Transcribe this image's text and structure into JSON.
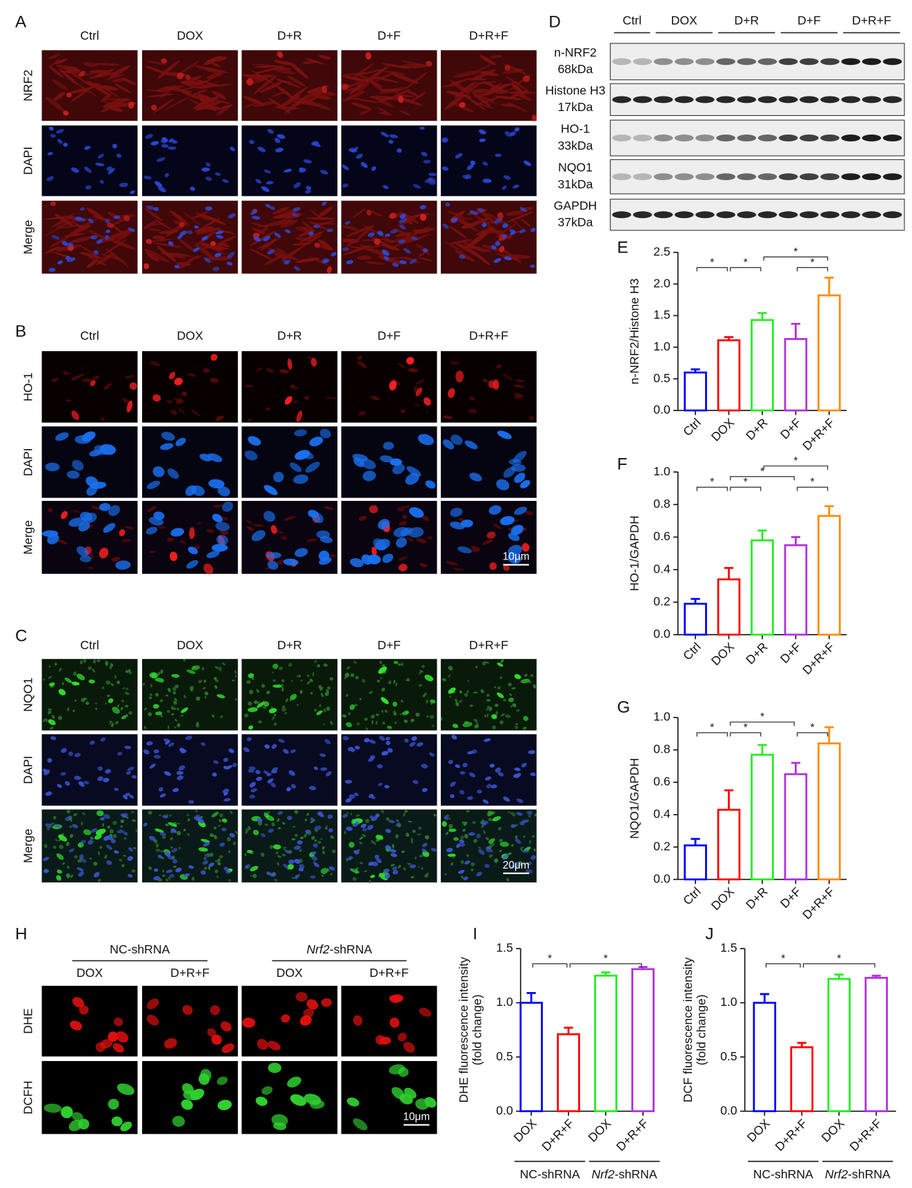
{
  "figure": {
    "A": {
      "letter": "A",
      "columns": [
        "Ctrl",
        "DOX",
        "D+R",
        "D+F",
        "D+R+F"
      ],
      "rows": [
        "NRF2",
        "DAPI",
        "Merge"
      ]
    },
    "B": {
      "letter": "B",
      "columns": [
        "Ctrl",
        "DOX",
        "D+R",
        "D+F",
        "D+R+F"
      ],
      "rows": [
        "HO-1",
        "DAPI",
        "Merge"
      ],
      "scale": "10μm"
    },
    "C": {
      "letter": "C",
      "columns": [
        "Ctrl",
        "DOX",
        "D+R",
        "D+F",
        "D+R+F"
      ],
      "rows": [
        "NQO1",
        "DAPI",
        "Merge"
      ],
      "scale": "20μm"
    },
    "D": {
      "letter": "D",
      "groups": [
        "Ctrl",
        "DOX",
        "D+R",
        "D+F",
        "D+R+F"
      ],
      "blots": [
        {
          "name": "n-NRF2",
          "size": "68kDa"
        },
        {
          "name": "Histone H3",
          "size": "17kDa"
        },
        {
          "name": "HO-1",
          "size": "33kDa"
        },
        {
          "name": "NQO1",
          "size": "31kDa"
        },
        {
          "name": "GAPDH",
          "size": "37kDa"
        }
      ]
    },
    "H": {
      "letter": "H",
      "groups": [
        {
          "name": "NC-shRNA",
          "columns": [
            "DOX",
            "D+R+F"
          ]
        },
        {
          "name_italic": "Nrf2",
          "name": "-shRNA",
          "columns": [
            "DOX",
            "D+R+F"
          ]
        }
      ],
      "rows": [
        "DHE",
        "DCFH"
      ],
      "scale": "10μm"
    }
  },
  "chart_data": [
    {
      "type": "bar",
      "letter": "E",
      "ylabel": [
        "n-NRF2/Histone H3"
      ],
      "categories": [
        "Ctrl",
        "DOX",
        "D+R",
        "D+F",
        "D+R+F"
      ],
      "colors": [
        "#0000ff",
        "#ff0000",
        "#22ee22",
        "#b030e0",
        "#ff8c00"
      ],
      "values": [
        0.6,
        1.11,
        1.43,
        1.13,
        1.82
      ],
      "errors": [
        0.05,
        0.05,
        0.11,
        0.24,
        0.28
      ],
      "ylim": [
        0,
        2.5
      ],
      "yticks": [
        {
          "value": 0,
          "label": "0.0"
        },
        0.5,
        {
          "value": 1,
          "label": "1.0"
        },
        1.5,
        {
          "value": 2,
          "label": "2.0"
        },
        2.5
      ],
      "brackets": [
        {
          "pair": [
            0,
            1
          ],
          "label": "*"
        },
        {
          "pair": [
            1,
            2
          ],
          "label": "*"
        },
        {
          "pair": [
            3,
            4
          ],
          "label": "*"
        },
        {
          "pair": [
            2,
            4
          ],
          "label": "*"
        }
      ]
    },
    {
      "type": "bar",
      "letter": "F",
      "ylabel": [
        "HO-1/GAPDH"
      ],
      "categories": [
        "Ctrl",
        "DOX",
        "D+R",
        "D+F",
        "D+R+F"
      ],
      "colors": [
        "#0000ff",
        "#ff0000",
        "#22ee22",
        "#b030e0",
        "#ff8c00"
      ],
      "values": [
        0.19,
        0.34,
        0.58,
        0.55,
        0.73
      ],
      "errors": [
        0.03,
        0.07,
        0.06,
        0.05,
        0.06
      ],
      "ylim": [
        0,
        1
      ],
      "yticks": [
        {
          "value": 0,
          "label": "0.0"
        },
        0.2,
        0.4,
        0.6,
        0.8,
        {
          "value": 1,
          "label": "1.0"
        }
      ],
      "brackets": [
        {
          "pair": [
            0,
            1
          ],
          "label": "*"
        },
        {
          "pair": [
            1,
            2
          ],
          "label": "*"
        },
        {
          "pair": [
            3,
            4
          ],
          "label": "*"
        },
        {
          "pair": [
            1,
            3
          ],
          "label": "*"
        },
        {
          "pair": [
            2,
            4
          ],
          "label": "*"
        }
      ]
    },
    {
      "type": "bar",
      "letter": "G",
      "ylabel": [
        "NQO1/GAPDH"
      ],
      "categories": [
        "Ctrl",
        "DOX",
        "D+R",
        "D+F",
        "D+R+F"
      ],
      "colors": [
        "#0000ff",
        "#ff0000",
        "#22ee22",
        "#b030e0",
        "#ff8c00"
      ],
      "values": [
        0.21,
        0.43,
        0.77,
        0.65,
        0.84
      ],
      "errors": [
        0.04,
        0.12,
        0.06,
        0.07,
        0.1
      ],
      "ylim": [
        0,
        1
      ],
      "yticks": [
        {
          "value": 0,
          "label": "0.0"
        },
        0.2,
        0.4,
        0.6,
        0.8,
        {
          "value": 1,
          "label": "1.0"
        }
      ],
      "brackets": [
        {
          "pair": [
            0,
            1
          ],
          "label": "*"
        },
        {
          "pair": [
            1,
            2
          ],
          "label": "*"
        },
        {
          "pair": [
            3,
            4
          ],
          "label": "*"
        },
        {
          "pair": [
            1,
            3
          ],
          "label": "*"
        }
      ]
    },
    {
      "type": "bar",
      "letter": "I",
      "ylabel": [
        "DHE fluorescence intensity",
        "(fold change)"
      ],
      "categories": [
        "DOX",
        "D+R+F",
        "DOX",
        "D+R+F"
      ],
      "colors": [
        "#0000ff",
        "#ff0000",
        "#22ee22",
        "#b030e0"
      ],
      "groups": [
        {
          "name": "NC-shRNA"
        },
        {
          "name_italic": "Nrf2",
          "name": "-shRNA"
        }
      ],
      "values": [
        1.0,
        0.71,
        1.25,
        1.31
      ],
      "errors": [
        0.09,
        0.06,
        0.03,
        0.02
      ],
      "ylim": [
        0,
        1.5
      ],
      "yticks": [
        {
          "value": 0,
          "label": "0.0"
        },
        0.5,
        {
          "value": 1,
          "label": "1.0"
        },
        1.5
      ],
      "brackets": [
        {
          "pair": [
            0,
            1
          ],
          "label": "*"
        },
        {
          "pair": [
            1,
            3
          ],
          "label": "*"
        }
      ]
    },
    {
      "type": "bar",
      "letter": "J",
      "ylabel": [
        "DCF fluorescence intensity",
        "(fold change)"
      ],
      "categories": [
        "DOX",
        "D+R+F",
        "DOX",
        "D+R+F"
      ],
      "colors": [
        "#0000ff",
        "#ff0000",
        "#22ee22",
        "#b030e0"
      ],
      "groups": [
        {
          "name": "NC-shRNA"
        },
        {
          "name_italic": "Nrf2",
          "name": "-shRNA"
        }
      ],
      "values": [
        1.0,
        0.59,
        1.22,
        1.23
      ],
      "errors": [
        0.08,
        0.04,
        0.04,
        0.02
      ],
      "ylim": [
        0,
        1.5
      ],
      "yticks": [
        {
          "value": 0,
          "label": "0.0"
        },
        0.5,
        {
          "value": 1,
          "label": "1.0"
        },
        1.5
      ],
      "brackets": [
        {
          "pair": [
            0,
            1
          ],
          "label": "*"
        },
        {
          "pair": [
            1,
            3
          ],
          "label": "*"
        }
      ]
    }
  ]
}
